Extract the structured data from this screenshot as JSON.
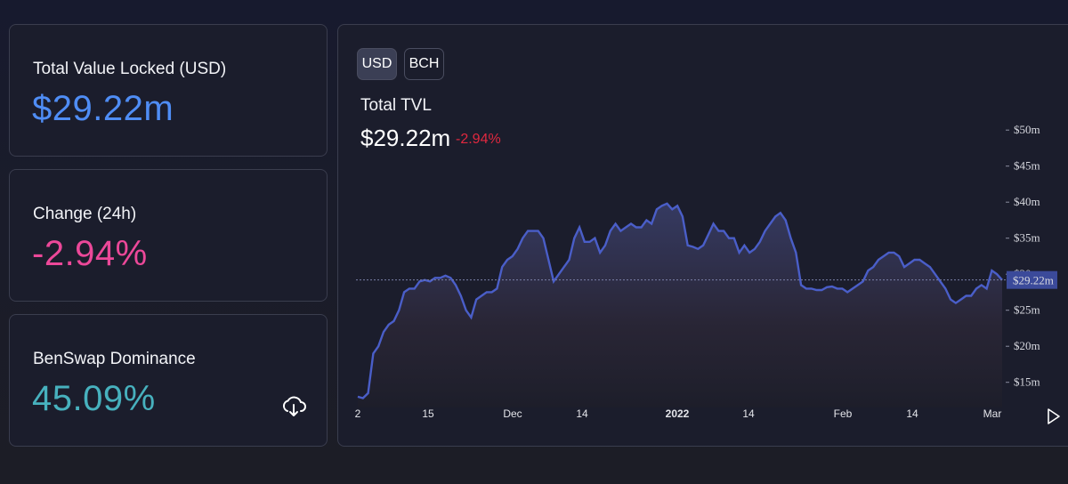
{
  "cards": {
    "tvl": {
      "label": "Total Value Locked (USD)",
      "value": "$29.22m",
      "color": "#4f8df5"
    },
    "change": {
      "label": "Change (24h)",
      "value": "-2.94%",
      "color": "#ec4899"
    },
    "dominance": {
      "label": "BenSwap Dominance",
      "value": "45.09%",
      "color": "#47b1be"
    }
  },
  "icons": {
    "download": "download-cloud-icon",
    "next": "play-next-icon"
  },
  "chart_panel": {
    "toggle": {
      "usd": "USD",
      "bch": "BCH",
      "selected": "USD"
    },
    "title": "Total TVL",
    "value": "$29.22m",
    "change": "-2.94%",
    "change_color": "#e0283f",
    "current_marker": "$29.22m"
  },
  "chart_data": {
    "type": "area",
    "title": "Total TVL",
    "x_ticks": [
      "2",
      "15",
      "Dec",
      "14",
      "2022",
      "14",
      "Feb",
      "14",
      "Mar"
    ],
    "y_ticks": [
      "$15m",
      "$20m",
      "$25m",
      "$30m",
      "$35m",
      "$40m",
      "$45m",
      "$50m"
    ],
    "ylim": [
      12,
      52
    ],
    "line_color": "#4a5ec8",
    "series": [
      {
        "values": [
          13,
          12.8,
          13.5,
          19,
          20,
          22,
          23,
          23.5,
          25,
          27.5,
          28,
          28,
          29,
          29.2,
          29,
          29.5,
          29.5,
          29.8,
          29.5,
          28.5,
          27,
          25,
          24,
          26.5,
          27,
          27.5,
          27.5,
          28,
          31,
          32,
          32.5,
          33.5,
          35,
          36,
          36,
          36,
          35,
          32,
          29,
          30,
          31,
          32,
          35,
          36.5,
          34.5,
          34.5,
          35,
          33,
          34,
          36,
          37,
          36,
          36.5,
          37,
          36.5,
          36.5,
          37.5,
          37,
          39,
          39.5,
          39.8,
          39,
          39.5,
          38,
          34,
          33.8,
          33.5,
          34,
          35.5,
          37,
          36,
          36,
          35,
          35,
          33,
          34,
          33,
          33.5,
          34.5,
          36,
          37,
          38,
          38.5,
          37.5,
          35,
          33,
          28.5,
          28,
          28,
          27.8,
          27.8,
          28.2,
          28.3,
          28,
          28,
          27.5,
          28,
          28.5,
          29,
          30.5,
          31,
          32,
          32.5,
          33,
          33,
          32.5,
          31,
          31.5,
          32,
          32,
          31.5,
          31,
          30,
          29,
          28,
          26.5,
          26,
          26.5,
          27,
          27,
          28,
          28.5,
          28,
          30.5,
          30,
          29.2
        ]
      }
    ]
  }
}
